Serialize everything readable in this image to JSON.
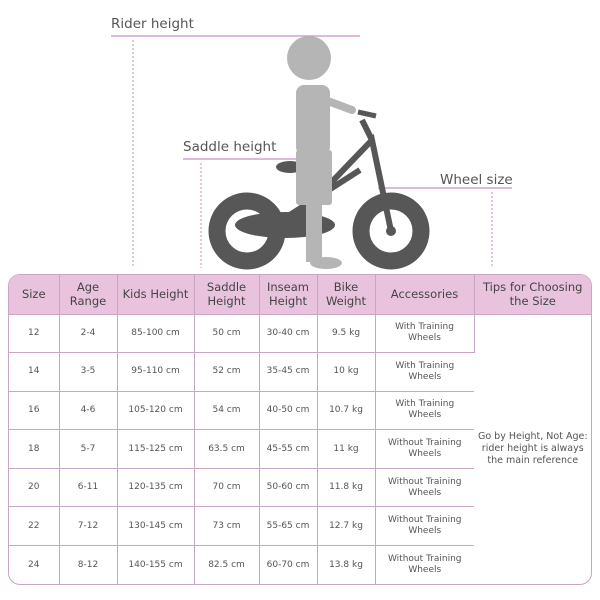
{
  "labels": {
    "rider_height": "Rider height",
    "saddle_height": "Saddle height",
    "wheel_size": "Wheel size"
  },
  "colors": {
    "header": "#e9c3de",
    "accent_line": "#c98fbf",
    "bike": "#575757",
    "rider": "#b5b5b5"
  },
  "table": {
    "headers": [
      "Size",
      "Age Range",
      "Kids Height",
      "Saddle Height",
      "Inseam Height",
      "Bike Weight",
      "Accessories",
      "Tips for Choosing the Size"
    ],
    "rows": [
      [
        "12",
        "2-4",
        "85-100 cm",
        "50 cm",
        "30-40 cm",
        "9.5 kg",
        "With Training Wheels"
      ],
      [
        "14",
        "3-5",
        "95-110 cm",
        "52 cm",
        "35-45 cm",
        "10 kg",
        "With Training Wheels"
      ],
      [
        "16",
        "4-6",
        "105-120 cm",
        "54 cm",
        "40-50 cm",
        "10.7 kg",
        "With Training Wheels"
      ],
      [
        "18",
        "5-7",
        "115-125 cm",
        "63.5 cm",
        "45-55 cm",
        "11 kg",
        "Without Training Wheels"
      ],
      [
        "20",
        "6-11",
        "120-135 cm",
        "70 cm",
        "50-60 cm",
        "11.8 kg",
        "Without Training Wheels"
      ],
      [
        "22",
        "7-12",
        "130-145 cm",
        "73 cm",
        "55-65 cm",
        "12.7 kg",
        "Without Training Wheels"
      ],
      [
        "24",
        "8-12",
        "140-155 cm",
        "82.5 cm",
        "60-70 cm",
        "13.8 kg",
        "Without Training Wheels"
      ]
    ],
    "tip": "Go by Height, Not Age: rider height is always the main reference"
  }
}
